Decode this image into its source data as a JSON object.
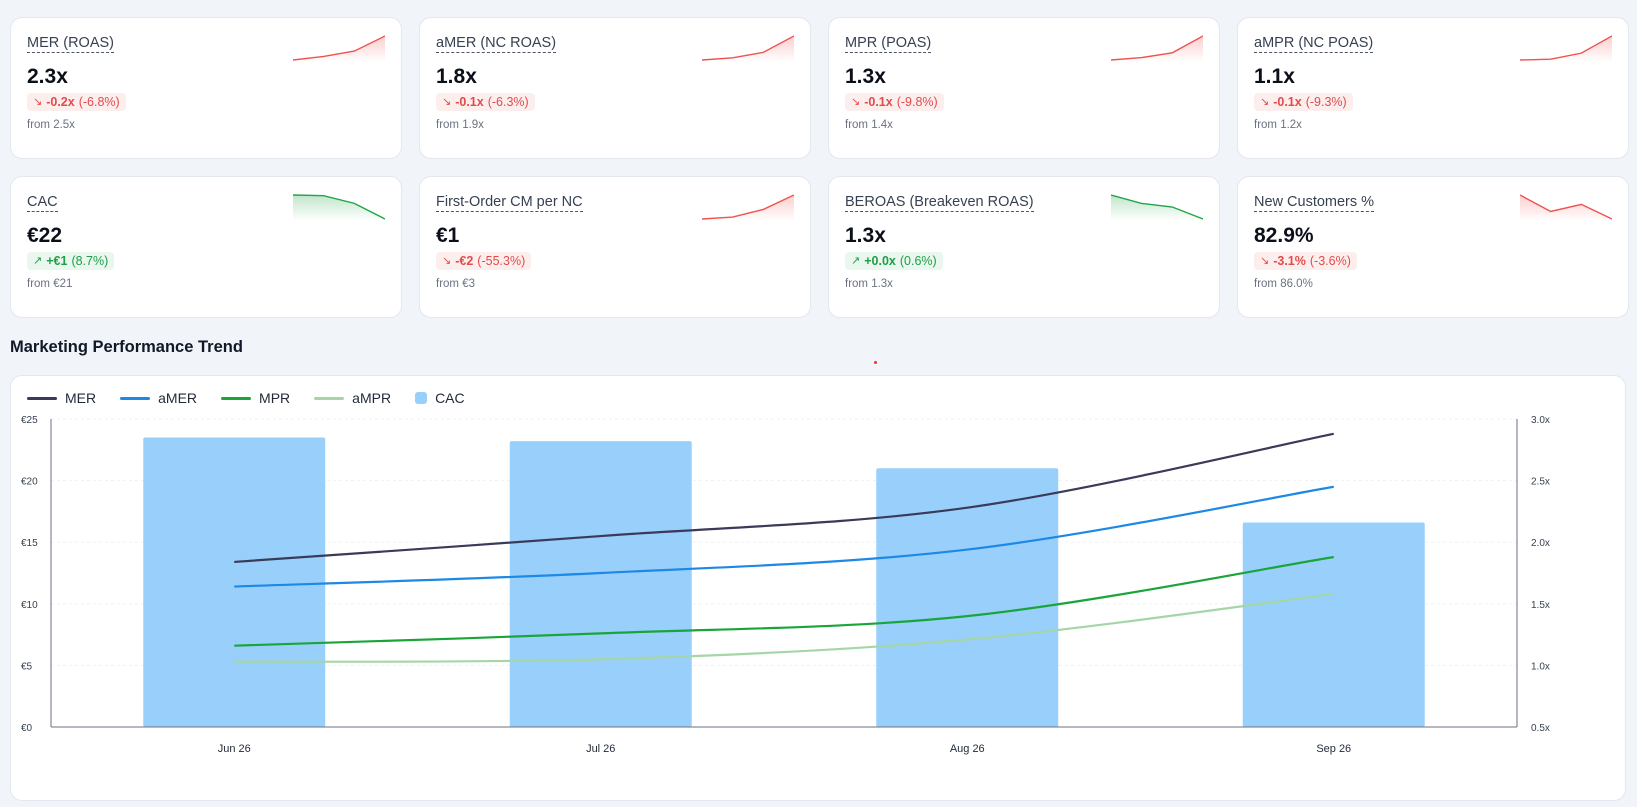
{
  "kpis": [
    {
      "title": "MER (ROAS)",
      "value": "2.3x",
      "direction": "down",
      "delta": "-0.2x",
      "pct": "(-6.8%)",
      "from": "from 2.5x",
      "spark": [
        2.48,
        2.52,
        2.58,
        2.75
      ],
      "spark_color": "#ef5350"
    },
    {
      "title": "aMER (NC ROAS)",
      "value": "1.8x",
      "direction": "down",
      "delta": "-0.1x",
      "pct": "(-6.3%)",
      "from": "from 1.9x",
      "spark": [
        1.88,
        1.9,
        1.95,
        2.1
      ],
      "spark_color": "#ef5350"
    },
    {
      "title": "MPR (POAS)",
      "value": "1.3x",
      "direction": "down",
      "delta": "-0.1x",
      "pct": "(-9.8%)",
      "from": "from 1.4x",
      "spark": [
        1.38,
        1.4,
        1.44,
        1.58
      ],
      "spark_color": "#ef5350"
    },
    {
      "title": "aMPR (NC POAS)",
      "value": "1.1x",
      "direction": "down",
      "delta": "-0.1x",
      "pct": "(-9.3%)",
      "from": "from 1.2x",
      "spark": [
        1.18,
        1.185,
        1.22,
        1.32
      ],
      "spark_color": "#ef5350"
    },
    {
      "title": "CAC",
      "value": "€22",
      "direction": "up",
      "delta": "+€1",
      "pct": "(8.7%)",
      "from": "from €21",
      "spark": [
        23.5,
        23.3,
        21.1,
        16.6
      ],
      "spark_color": "#22a447"
    },
    {
      "title": "First-Order CM per NC",
      "value": "€1",
      "direction": "down",
      "delta": "-€2",
      "pct": "(-55.3%)",
      "from": "from €3",
      "spark": [
        1.0,
        1.2,
        2.0,
        3.5
      ],
      "spark_color": "#ef5350"
    },
    {
      "title": "BEROAS (Breakeven ROAS)",
      "value": "1.3x",
      "direction": "up",
      "delta": "+0.0x",
      "pct": "(0.6%)",
      "from": "from 1.3x",
      "spark": [
        1.4,
        1.33,
        1.3,
        1.2
      ],
      "spark_color": "#22a447"
    },
    {
      "title": "New Customers %",
      "value": "82.9%",
      "direction": "down",
      "delta": "-3.1%",
      "pct": "(-3.6%)",
      "from": "from 86.0%",
      "spark": [
        88.0,
        84.5,
        86.0,
        82.9
      ],
      "spark_color": "#ef5350"
    }
  ],
  "section": {
    "title": "Marketing Performance Trend"
  },
  "chart_data": {
    "type": "bar",
    "title": "",
    "categories": [
      "Jun 26",
      "Jul 26",
      "Aug 26",
      "Sep 26"
    ],
    "y_left": {
      "ticks": [
        "€0",
        "€5",
        "€10",
        "€15",
        "€20",
        "€25"
      ],
      "range": [
        0,
        25
      ]
    },
    "y_right": {
      "ticks": [
        "0.5x",
        "1.0x",
        "1.5x",
        "2.0x",
        "2.5x",
        "3.0x"
      ],
      "range": [
        0.5,
        3.0
      ]
    },
    "grid": true,
    "legend_position": "top-left",
    "bars": {
      "name": "CAC",
      "axis": "left",
      "color": "#99d0fb",
      "values": [
        23.5,
        23.2,
        21.0,
        16.6
      ]
    },
    "series": [
      {
        "name": "MER",
        "axis": "right",
        "color": "#3a3a5a",
        "values": [
          1.84,
          2.05,
          2.28,
          2.88
        ]
      },
      {
        "name": "aMER",
        "axis": "right",
        "color": "#1e88e5",
        "values": [
          1.64,
          1.75,
          1.94,
          2.45
        ]
      },
      {
        "name": "MPR",
        "axis": "right",
        "color": "#1aa53a",
        "values": [
          1.16,
          1.26,
          1.4,
          1.88
        ]
      },
      {
        "name": "aMPR",
        "axis": "right",
        "color": "#a5d6a7",
        "values": [
          1.03,
          1.05,
          1.21,
          1.58
        ]
      }
    ]
  }
}
